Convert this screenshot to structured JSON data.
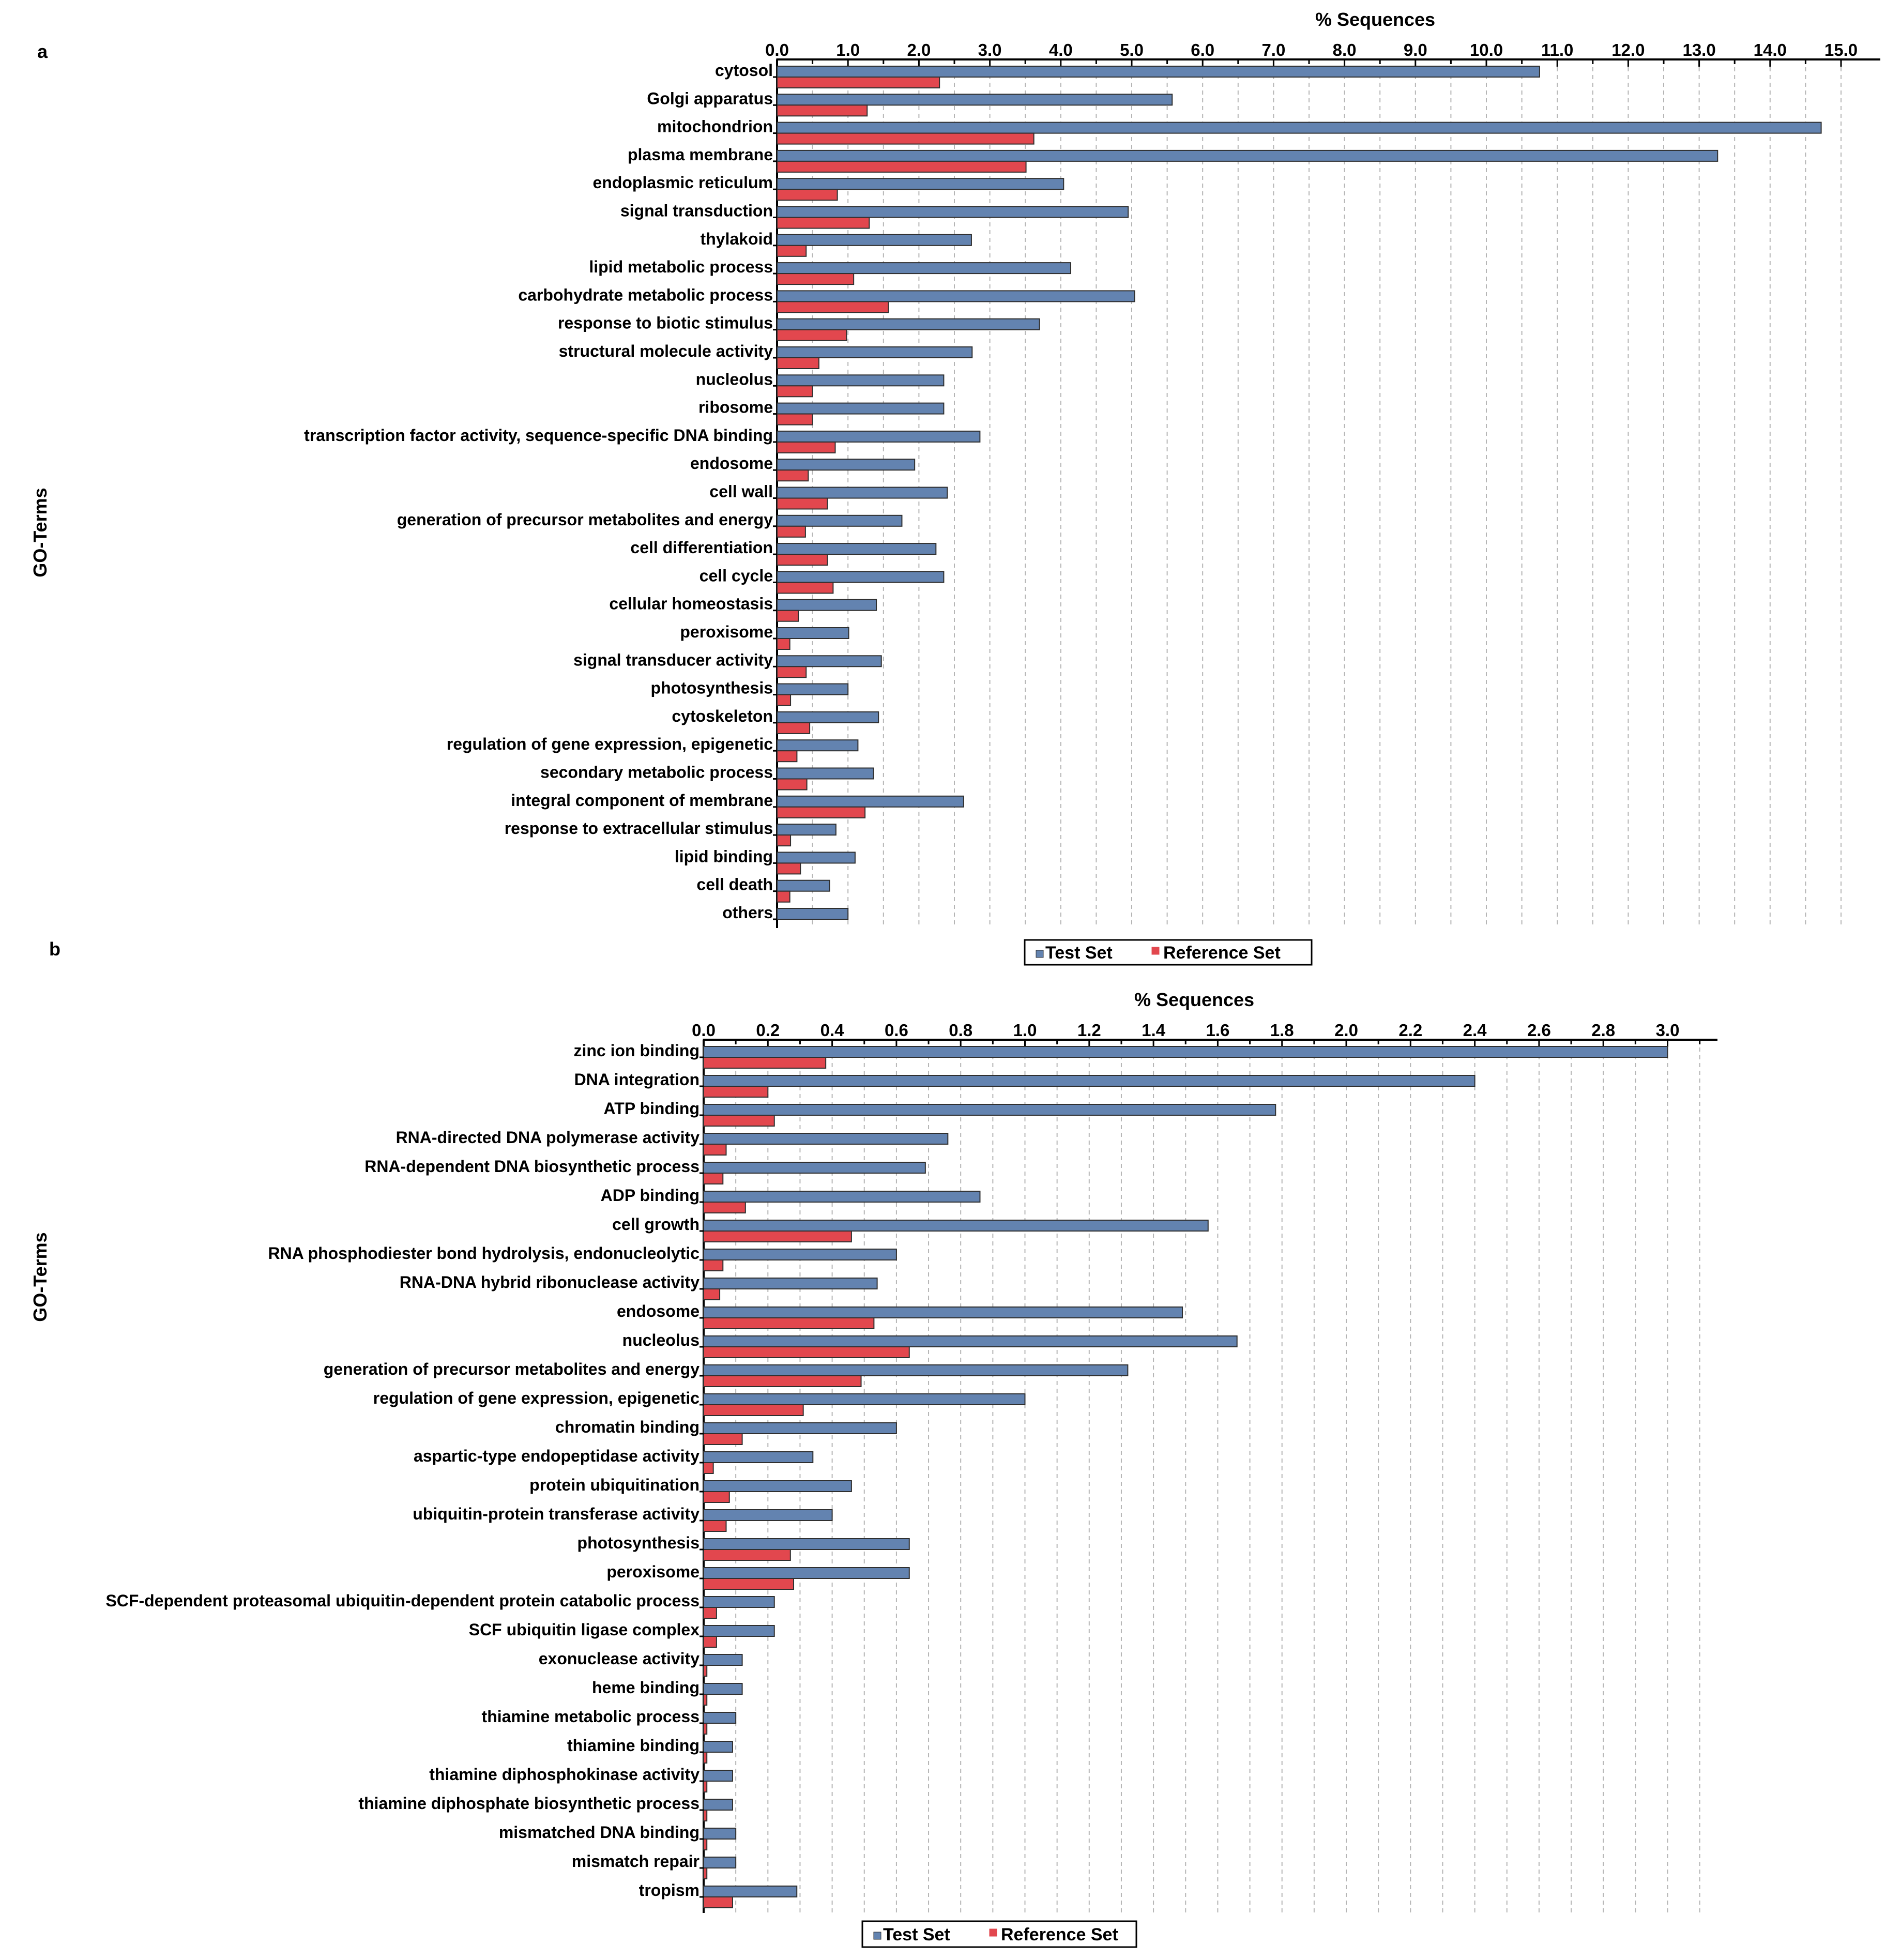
{
  "chart_data": [
    {
      "panel": "a",
      "type": "bar",
      "orientation": "horizontal",
      "xlabel": "% Sequences",
      "ylabel": "GO-Terms",
      "xlim": [
        0,
        15.0
      ],
      "xticks": [
        "0.0",
        "1.0",
        "2.0",
        "3.0",
        "4.0",
        "5.0",
        "6.0",
        "7.0",
        "8.0",
        "9.0",
        "10.0",
        "11.0",
        "12.0",
        "13.0",
        "14.0",
        "15.0"
      ],
      "grid": true,
      "legend": [
        "Test Set",
        "Reference Set"
      ],
      "categories": [
        "cytosol",
        "Golgi apparatus",
        "mitochondrion",
        "plasma membrane",
        "endoplasmic reticulum",
        "signal transduction",
        "thylakoid",
        "lipid metabolic process",
        "carbohydrate metabolic process",
        "response to biotic stimulus",
        "structural molecule activity",
        "nucleolus",
        "ribosome",
        "transcription factor activity, sequence-specific DNA binding",
        "endosome",
        "cell wall",
        "generation of precursor metabolites and energy",
        "cell differentiation",
        "cell cycle",
        "cellular homeostasis",
        "peroxisome",
        "signal transducer activity",
        "photosynthesis",
        "cytoskeleton",
        "regulation of gene expression, epigenetic",
        "secondary metabolic process",
        "integral component of membrane",
        "response to extracellular stimulus",
        "lipid binding",
        "cell death",
        "others"
      ],
      "series": [
        {
          "name": "Test Set",
          "color": "#6383b0",
          "values": [
            10.75,
            5.57,
            14.72,
            13.26,
            4.04,
            4.95,
            2.74,
            4.14,
            5.04,
            3.7,
            2.75,
            2.35,
            2.35,
            2.86,
            1.94,
            2.4,
            1.76,
            2.24,
            2.35,
            1.4,
            1.01,
            1.47,
            1.0,
            1.43,
            1.14,
            1.36,
            2.63,
            0.83,
            1.1,
            0.74,
            1.0
          ]
        },
        {
          "name": "Reference Set",
          "color": "#e2474e",
          "values": [
            2.29,
            1.27,
            3.62,
            3.51,
            0.85,
            1.3,
            0.41,
            1.08,
            1.57,
            0.98,
            0.59,
            0.5,
            0.5,
            0.82,
            0.44,
            0.71,
            0.4,
            0.71,
            0.79,
            0.3,
            0.18,
            0.41,
            0.19,
            0.46,
            0.28,
            0.42,
            1.24,
            0.19,
            0.33,
            0.18,
            0.0
          ]
        }
      ]
    },
    {
      "panel": "b",
      "type": "bar",
      "orientation": "horizontal",
      "xlabel": "% Sequences",
      "ylabel": "GO-Terms",
      "xlim": [
        0,
        3.2
      ],
      "xticks": [
        "0.0",
        "0.2",
        "0.4",
        "0.6",
        "0.8",
        "1.0",
        "1.2",
        "1.4",
        "1.6",
        "1.8",
        "2.0",
        "2.2",
        "2.4",
        "2.6",
        "2.8",
        "3.0"
      ],
      "grid": true,
      "legend": [
        "Test Set",
        "Reference Set"
      ],
      "categories": [
        "zinc ion binding",
        "DNA integration",
        "ATP binding",
        "RNA-directed DNA polymerase activity",
        "RNA-dependent DNA biosynthetic process",
        "ADP binding",
        "cell growth",
        "RNA phosphodiester bond hydrolysis, endonucleolytic",
        "RNA-DNA hybrid ribonuclease activity",
        "endosome",
        "nucleolus",
        "generation of precursor metabolites and energy",
        "regulation of gene expression, epigenetic",
        "chromatin binding",
        "aspartic-type endopeptidase activity",
        "protein ubiquitination",
        "ubiquitin-protein transferase activity",
        "photosynthesis",
        "peroxisome",
        "SCF-dependent proteasomal ubiquitin-dependent protein catabolic process",
        "SCF ubiquitin ligase complex",
        "exonuclease activity",
        "heme binding",
        "thiamine metabolic process",
        "thiamine binding",
        "thiamine diphosphokinase activity",
        "thiamine diphosphate biosynthetic process",
        "mismatched DNA binding",
        "mismatch repair",
        "tropism"
      ],
      "series": [
        {
          "name": "Test Set",
          "color": "#6383b0",
          "values": [
            3.0,
            2.4,
            1.78,
            0.76,
            0.69,
            0.86,
            1.57,
            0.6,
            0.54,
            1.49,
            1.66,
            1.32,
            1.0,
            0.6,
            0.34,
            0.46,
            0.4,
            0.64,
            0.64,
            0.22,
            0.22,
            0.12,
            0.12,
            0.1,
            0.09,
            0.09,
            0.09,
            0.1,
            0.1,
            0.29
          ]
        },
        {
          "name": "Reference Set",
          "color": "#e2474e",
          "values": [
            0.38,
            0.2,
            0.22,
            0.07,
            0.06,
            0.13,
            0.46,
            0.06,
            0.05,
            0.53,
            0.64,
            0.49,
            0.31,
            0.12,
            0.03,
            0.08,
            0.07,
            0.27,
            0.28,
            0.04,
            0.04,
            0.01,
            0.01,
            0.01,
            0.01,
            0.01,
            0.01,
            0.01,
            0.01,
            0.09
          ]
        }
      ]
    }
  ]
}
